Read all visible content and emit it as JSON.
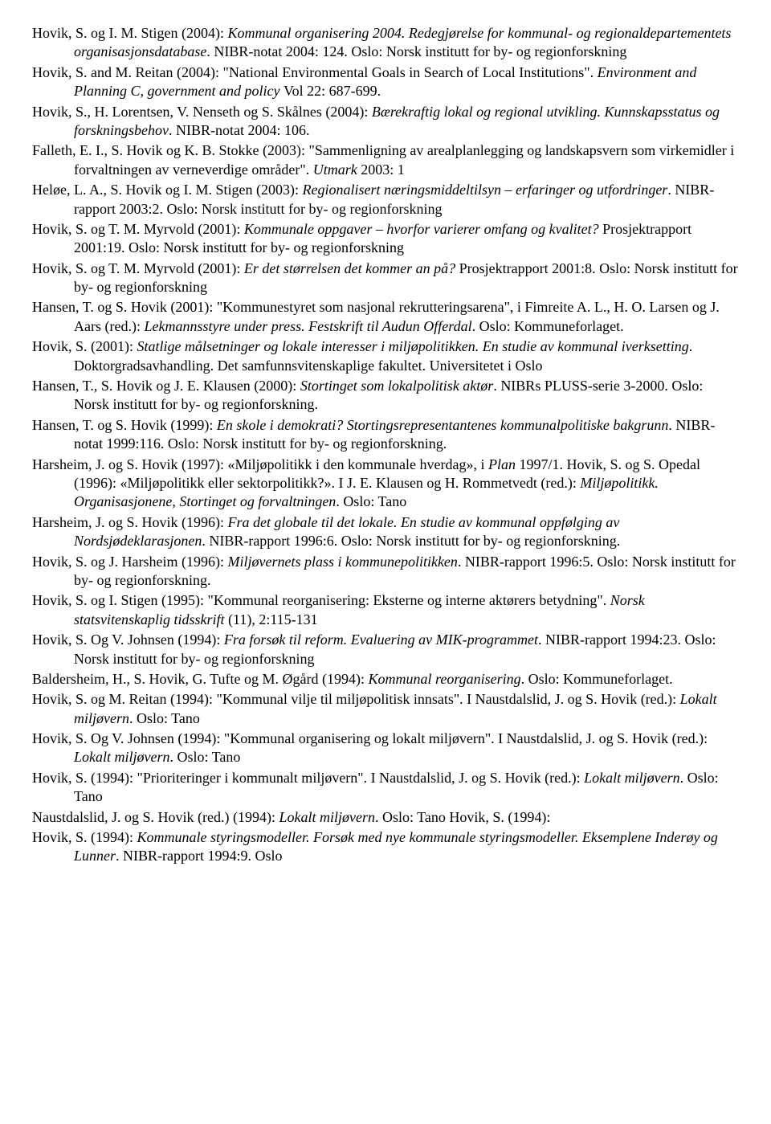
{
  "entries": [
    {
      "segments": [
        {
          "t": "Hovik, S. og I. M. Stigen (2004): "
        },
        {
          "t": "Kommunal organisering 2004. Redegjørelse for kommunal- og regionaldepartementets organisasjonsdatabase",
          "i": true
        },
        {
          "t": ". NIBR-notat 2004: 124. Oslo: Norsk institutt for by- og regionforskning"
        }
      ]
    },
    {
      "segments": [
        {
          "t": "Hovik, S. and M. Reitan (2004): \"National Environmental Goals in Search of Local Institutions\". "
        },
        {
          "t": "Environment and Planning C, government and policy ",
          "i": true
        },
        {
          "t": "Vol 22: 687-699."
        }
      ]
    },
    {
      "segments": [
        {
          "t": "Hovik, S., H. Lorentsen, V. Nenseth og S. Skålnes (2004): "
        },
        {
          "t": "Bærekraftig lokal og regional utvikling. Kunnskapsstatus og forskningsbehov",
          "i": true
        },
        {
          "t": ". NIBR-notat 2004: 106."
        }
      ]
    },
    {
      "segments": [
        {
          "t": "Falleth, E. I., S. Hovik og K. B. Stokke (2003): \"Sammenligning av arealplanlegging og landskapsvern som virkemidler i forvaltningen av verneverdige områder\". "
        },
        {
          "t": "Utmark ",
          "i": true
        },
        {
          "t": "2003: 1"
        }
      ]
    },
    {
      "segments": [
        {
          "t": "Heløe, L. A., S. Hovik og I. M. Stigen (2003): "
        },
        {
          "t": "Regionalisert næringsmiddeltilsyn – erfaringer og utfordringer",
          "i": true
        },
        {
          "t": ". NIBR-rapport 2003:2. Oslo: Norsk institutt for by- og regionforskning"
        }
      ]
    },
    {
      "segments": [
        {
          "t": "Hovik, S. og T. M. Myrvold (2001): "
        },
        {
          "t": "Kommunale oppgaver – hvorfor varierer omfang og kvalitet?",
          "i": true
        },
        {
          "t": " Prosjektrapport 2001:19. Oslo: Norsk institutt for by- og regionforskning"
        }
      ]
    },
    {
      "segments": [
        {
          "t": "Hovik, S. og T. M. Myrvold (2001): "
        },
        {
          "t": "Er det størrelsen det kommer an på?",
          "i": true
        },
        {
          "t": " Prosjektrapport 2001:8. Oslo: Norsk institutt for by- og regionforskning"
        }
      ]
    },
    {
      "segments": [
        {
          "t": "Hansen, T. og S. Hovik (2001): \"Kommunestyret som nasjonal rekrutteringsarena\", i Fimreite A. L., H. O. Larsen og J. Aars (red.): "
        },
        {
          "t": "Lekmannsstyre under press. Festskrift til Audun Offerdal",
          "i": true
        },
        {
          "t": ". Oslo: Kommuneforlaget."
        }
      ]
    },
    {
      "segments": [
        {
          "t": "Hovik, S. (2001): "
        },
        {
          "t": "Statlige målsetninger og lokale interesser i miljøpolitikken. En studie av kommunal iverksetting",
          "i": true
        },
        {
          "t": ". Doktorgradsavhandling. Det samfunnsvitenskaplige fakultet. Universitetet i Oslo"
        }
      ]
    },
    {
      "segments": [
        {
          "t": "Hansen, T., S. Hovik og J. E. Klausen (2000): "
        },
        {
          "t": "Stortinget som lokalpolitisk aktør",
          "i": true
        },
        {
          "t": ". NIBRs PLUSS-serie 3-2000. Oslo: Norsk institutt for by- og regionforskning."
        }
      ]
    },
    {
      "segments": [
        {
          "t": "Hansen, T. og S. Hovik (1999): "
        },
        {
          "t": "En skole i demokrati? Stortingsrepresentantenes kommunalpolitiske bakgrunn",
          "i": true
        },
        {
          "t": ". NIBR-notat 1999:116. Oslo: Norsk institutt for by- og regionforskning."
        }
      ]
    },
    {
      "segments": [
        {
          "t": "Harsheim, J. og S. Hovik (1997): «Miljøpolitikk i den kommunale hverdag», i "
        },
        {
          "t": "Plan ",
          "i": true
        },
        {
          "t": "1997/1. Hovik, S. og S. Opedal (1996): «Miljøpolitikk eller sektorpolitikk?». I J. E. Klausen og H. Rommetvedt (red.): "
        },
        {
          "t": "Miljøpolitikk. Organisasjonene, Stortinget og forvaltningen",
          "i": true
        },
        {
          "t": ". Oslo: Tano"
        }
      ]
    },
    {
      "segments": [
        {
          "t": "Harsheim, J. og S. Hovik (1996): "
        },
        {
          "t": "Fra det globale til det lokale. En studie av kommunal oppfølging av Nordsjødeklarasjonen",
          "i": true
        },
        {
          "t": ". NIBR-rapport 1996:6. Oslo: Norsk institutt for by- og regionforskning."
        }
      ]
    },
    {
      "segments": [
        {
          "t": "Hovik, S. og J. Harsheim (1996): "
        },
        {
          "t": "Miljøvernets plass i kommunepolitikken",
          "i": true
        },
        {
          "t": ". NIBR-rapport 1996:5. Oslo: Norsk institutt for by- og regionforskning."
        }
      ]
    },
    {
      "segments": [
        {
          "t": "Hovik, S. og I. Stigen (1995): \"Kommunal reorganisering: Eksterne og interne aktørers betydning\". "
        },
        {
          "t": "Norsk statsvitenskaplig tidsskrift ",
          "i": true
        },
        {
          "t": "(11), 2:115-131"
        }
      ]
    },
    {
      "segments": [
        {
          "t": "Hovik, S. Og V. Johnsen (1994): "
        },
        {
          "t": "Fra forsøk til reform. Evaluering av MIK-programmet",
          "i": true
        },
        {
          "t": ". NIBR-rapport 1994:23. Oslo: Norsk institutt for by- og regionforskning"
        }
      ]
    },
    {
      "segments": [
        {
          "t": "Baldersheim, H., S. Hovik, G. Tufte og M. Øgård (1994): "
        },
        {
          "t": "Kommunal reorganisering",
          "i": true
        },
        {
          "t": ". Oslo: Kommuneforlaget."
        }
      ]
    },
    {
      "segments": [
        {
          "t": "Hovik, S. og M. Reitan (1994): \"Kommunal vilje til miljøpolitisk innsats\". I Naustdalslid, J. og S. Hovik (red.): "
        },
        {
          "t": "Lokalt miljøvern",
          "i": true
        },
        {
          "t": ". Oslo: Tano"
        }
      ]
    },
    {
      "segments": [
        {
          "t": "Hovik, S. Og V. Johnsen (1994): \"Kommunal organisering og lokalt miljøvern\". I Naustdalslid, J. og S. Hovik (red.): "
        },
        {
          "t": "Lokalt miljøvern",
          "i": true
        },
        {
          "t": ". Oslo: Tano"
        }
      ]
    },
    {
      "segments": [
        {
          "t": "Hovik, S. (1994): \"Prioriteringer i kommunalt miljøvern\". I Naustdalslid, J. og S. Hovik (red.): "
        },
        {
          "t": "Lokalt miljøvern",
          "i": true
        },
        {
          "t": ". Oslo: Tano"
        }
      ]
    },
    {
      "segments": [
        {
          "t": "Naustdalslid, J. og S. Hovik (red.) (1994): "
        },
        {
          "t": "Lokalt miljøvern",
          "i": true
        },
        {
          "t": ". Oslo: Tano Hovik, S. (1994):"
        }
      ]
    },
    {
      "segments": [
        {
          "t": "Hovik, S. (1994): "
        },
        {
          "t": "Kommunale styringsmodeller. Forsøk med nye kommunale styringsmodeller. Eksemplene Inderøy og Lunner",
          "i": true
        },
        {
          "t": ". NIBR-rapport 1994:9. Oslo"
        }
      ]
    }
  ]
}
